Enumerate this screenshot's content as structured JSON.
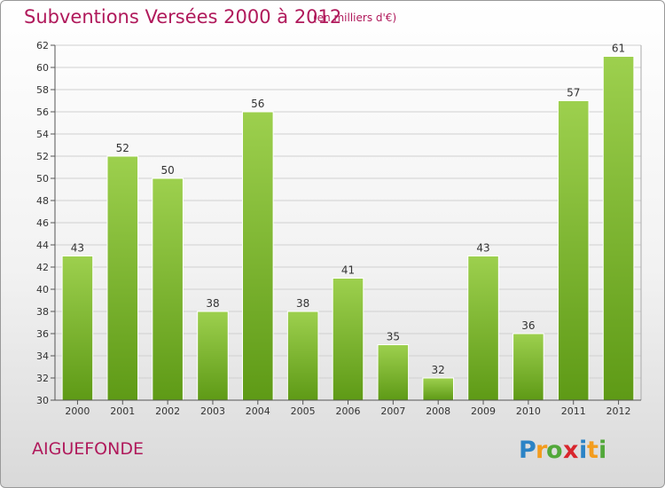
{
  "header": {
    "title": "Subventions Versées 2000 à 2012",
    "subtitle": "(en milliers d'€)"
  },
  "footer": {
    "commune": "AIGUEFONDE",
    "logo_text": "Proxiti"
  },
  "colors": {
    "title": "#b0195b",
    "bar_top": "#9dd04e",
    "bar_bottom": "#5e9a16"
  },
  "chart_data": {
    "type": "bar",
    "title": "Subventions Versées 2000 à 2012",
    "subtitle": "(en milliers d'€)",
    "categories": [
      "2000",
      "2001",
      "2002",
      "2003",
      "2004",
      "2005",
      "2006",
      "2007",
      "2008",
      "2009",
      "2010",
      "2011",
      "2012"
    ],
    "values": [
      43,
      52,
      50,
      38,
      56,
      38,
      41,
      35,
      32,
      43,
      36,
      57,
      61
    ],
    "ylim": [
      30,
      62
    ],
    "yticks": [
      30,
      32,
      34,
      36,
      38,
      40,
      42,
      44,
      46,
      48,
      50,
      52,
      54,
      56,
      58,
      60,
      62
    ],
    "grid": true,
    "data_labels": true
  }
}
